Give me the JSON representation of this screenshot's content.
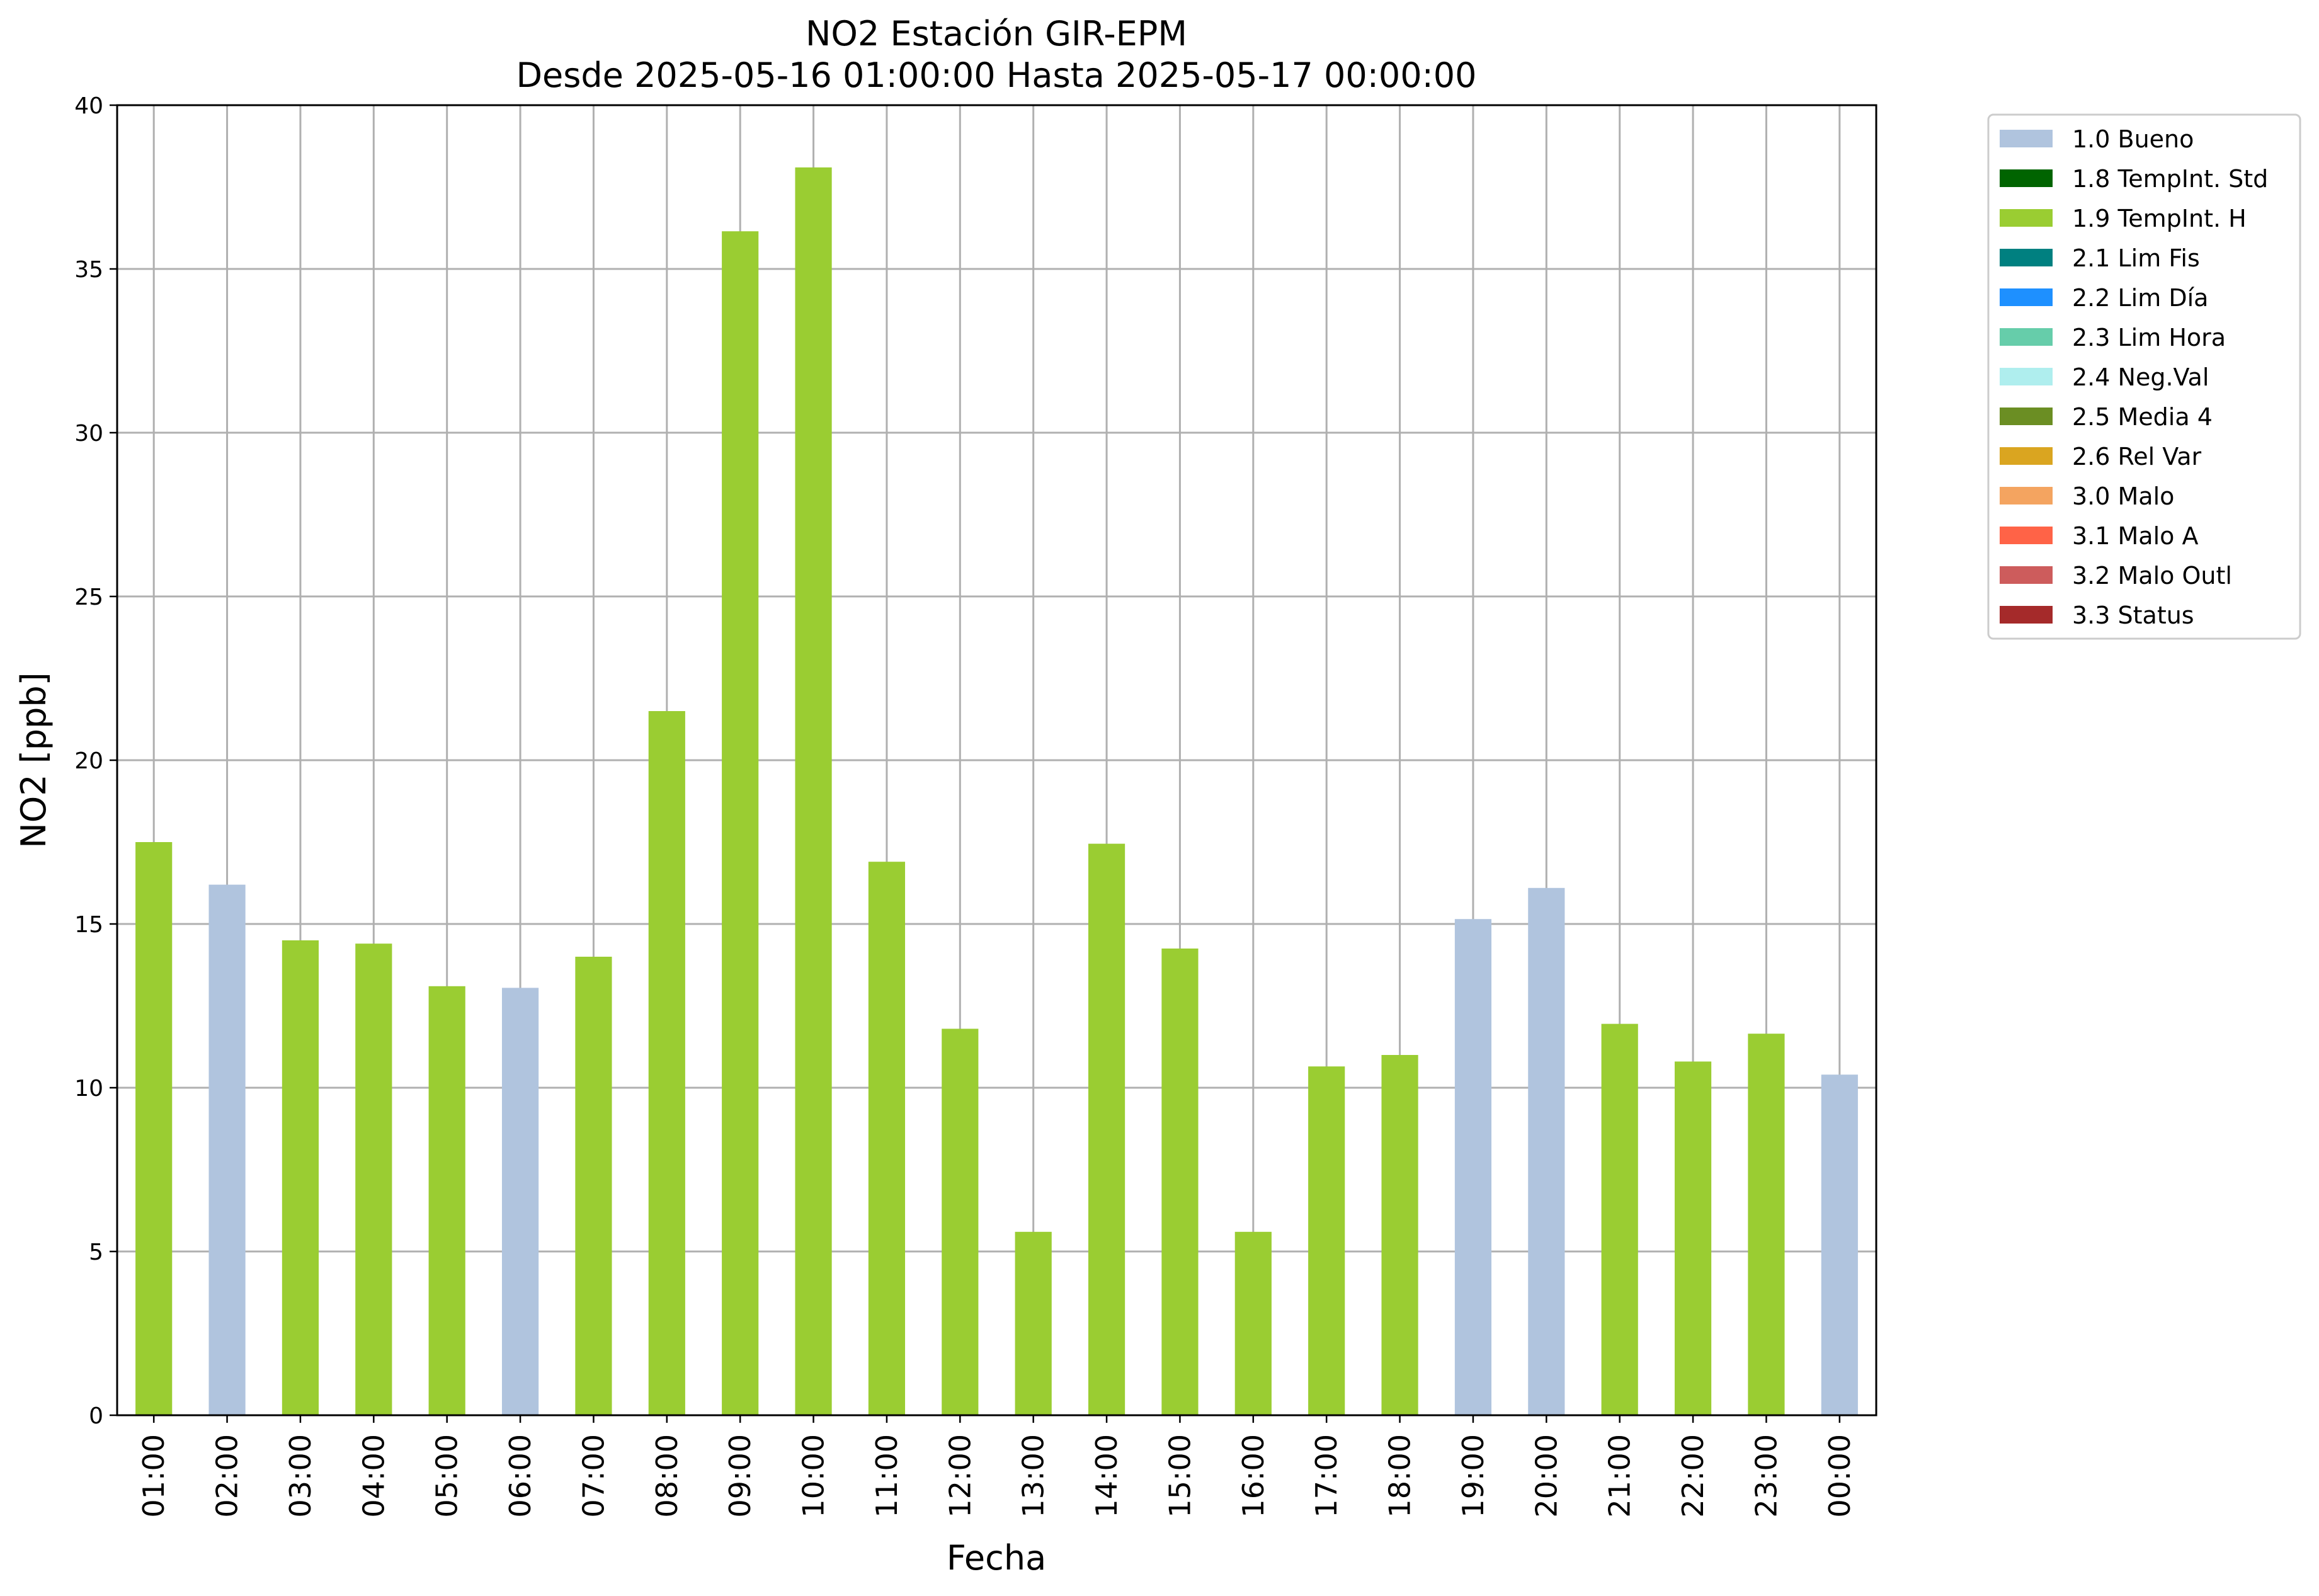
{
  "chart_data": {
    "type": "bar",
    "title": "NO2 Estación GIR-EPM",
    "subtitle": "Desde 2025-05-16 01:00:00 Hasta 2025-05-17 00:00:00",
    "xlabel": "Fecha",
    "ylabel": "NO2 [ppb]",
    "ylim": [
      0,
      40
    ],
    "yticks": [
      0,
      5,
      10,
      15,
      20,
      25,
      30,
      35,
      40
    ],
    "grid": true,
    "legend_position": "outside-top-right",
    "categories": [
      "01:00",
      "02:00",
      "03:00",
      "04:00",
      "05:00",
      "06:00",
      "07:00",
      "08:00",
      "09:00",
      "10:00",
      "11:00",
      "12:00",
      "13:00",
      "14:00",
      "15:00",
      "16:00",
      "17:00",
      "18:00",
      "19:00",
      "20:00",
      "21:00",
      "22:00",
      "23:00",
      "00:00"
    ],
    "values": [
      17.5,
      16.2,
      14.5,
      14.4,
      13.1,
      13.05,
      14.0,
      21.5,
      36.15,
      38.1,
      16.9,
      11.8,
      5.6,
      17.45,
      14.25,
      5.6,
      10.65,
      11.0,
      15.15,
      16.1,
      11.95,
      10.8,
      11.65,
      10.4
    ],
    "flags": [
      "1.9 TempInt. H",
      "1.0 Bueno",
      "1.9 TempInt. H",
      "1.9 TempInt. H",
      "1.9 TempInt. H",
      "1.0 Bueno",
      "1.9 TempInt. H",
      "1.9 TempInt. H",
      "1.9 TempInt. H",
      "1.9 TempInt. H",
      "1.9 TempInt. H",
      "1.9 TempInt. H",
      "1.9 TempInt. H",
      "1.9 TempInt. H",
      "1.9 TempInt. H",
      "1.9 TempInt. H",
      "1.9 TempInt. H",
      "1.9 TempInt. H",
      "1.0 Bueno",
      "1.0 Bueno",
      "1.9 TempInt. H",
      "1.9 TempInt. H",
      "1.9 TempInt. H",
      "1.0 Bueno"
    ],
    "legend": [
      {
        "label": "1.0 Bueno",
        "color": "#b0c4de"
      },
      {
        "label": "1.8 TempInt. Std",
        "color": "#006400"
      },
      {
        "label": "1.9 TempInt. H",
        "color": "#9acd32"
      },
      {
        "label": "2.1 Lim Fis",
        "color": "#008080"
      },
      {
        "label": "2.2 Lim Día",
        "color": "#1e90ff"
      },
      {
        "label": "2.3 Lim Hora",
        "color": "#66cdaa"
      },
      {
        "label": "2.4 Neg.Val",
        "color": "#afeeee"
      },
      {
        "label": "2.5 Media 4",
        "color": "#6b8e23"
      },
      {
        "label": "2.6 Rel Var",
        "color": "#daa520"
      },
      {
        "label": "3.0 Malo",
        "color": "#f4a460"
      },
      {
        "label": "3.1 Malo A",
        "color": "#ff6347"
      },
      {
        "label": "3.2 Malo Outl",
        "color": "#cd5c5c"
      },
      {
        "label": "3.3 Status",
        "color": "#a52a2a"
      }
    ]
  }
}
